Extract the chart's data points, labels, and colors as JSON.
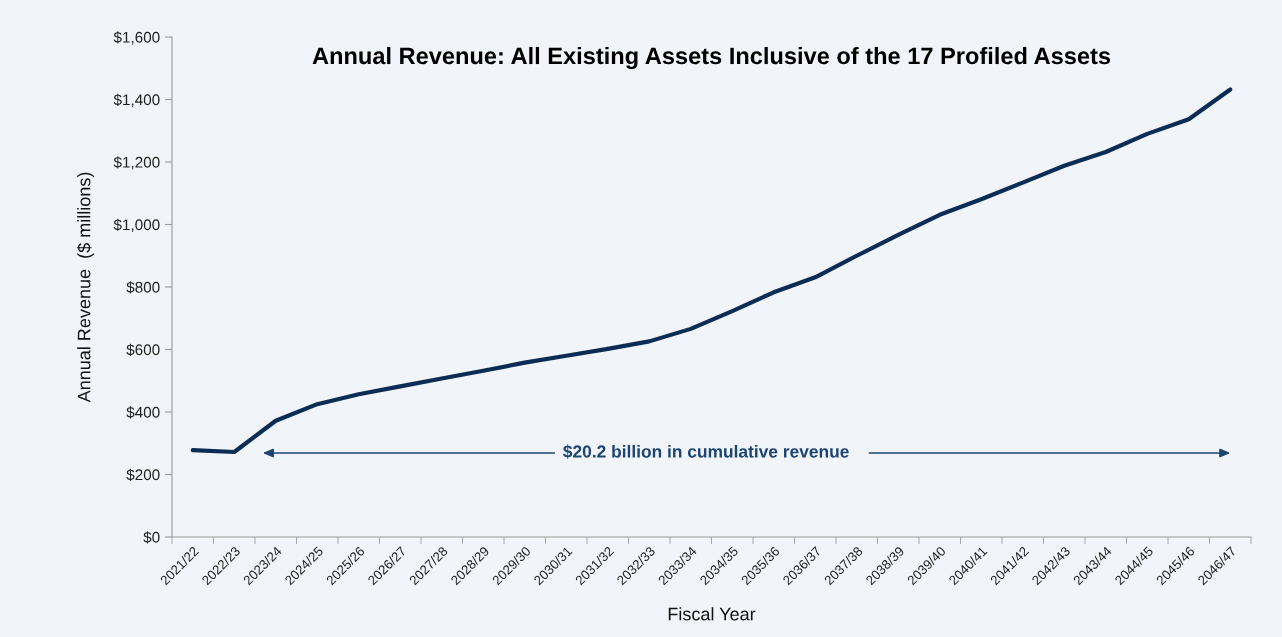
{
  "chart_data": {
    "type": "line",
    "title": "Annual Revenue: All Existing Assets Inclusive of the 17 Profiled Assets",
    "xlabel": "Fiscal Year",
    "ylabel": "Annual Revenue  ($ millions)",
    "categories": [
      "2021/22",
      "2022/23",
      "2023/24",
      "2024/25",
      "2025/26",
      "2026/27",
      "2027/28",
      "2028/29",
      "2029/30",
      "2030/31",
      "2031/32",
      "2032/33",
      "2033/34",
      "2034/35",
      "2035/36",
      "2036/37",
      "2037/38",
      "2038/39",
      "2039/40",
      "2040/41",
      "2041/42",
      "2042/43",
      "2043/44",
      "2044/45",
      "2045/46",
      "2046/47"
    ],
    "series": [
      {
        "color": "#0b2c54",
        "values": [
          278,
          272,
          372,
          425,
          457,
          482,
          507,
          532,
          558,
          580,
          602,
          626,
          666,
          723,
          783,
          831,
          900,
          967,
          1031,
          1081,
          1134,
          1188,
          1232,
          1290,
          1337,
          1432
        ]
      }
    ],
    "ylim": [
      0,
      1600
    ],
    "yticks": [
      {
        "value": 0,
        "label": "$0"
      },
      {
        "value": 200,
        "label": "$200"
      },
      {
        "value": 400,
        "label": "$400"
      },
      {
        "value": 600,
        "label": "$600"
      },
      {
        "value": 800,
        "label": "$800"
      },
      {
        "value": 1000,
        "label": "$1,000"
      },
      {
        "value": 1200,
        "label": "$1,200"
      },
      {
        "value": 1400,
        "label": "$1,400"
      },
      {
        "value": 1600,
        "label": "$1,600"
      }
    ],
    "annotations": [
      "$20.2 billion in cumulative revenue"
    ],
    "grid": false,
    "legend": false,
    "marker": "none",
    "line_style": "solid"
  }
}
